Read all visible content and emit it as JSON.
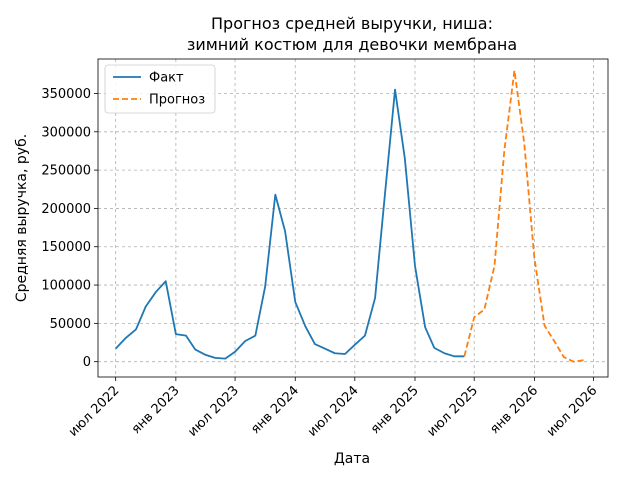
{
  "chart_data": {
    "type": "line",
    "title_line1": "Прогноз средней выручки, ниша:",
    "title_line2": "зимний костюм для девочки мембрана",
    "xlabel": "Дата",
    "ylabel": "Средняя выручка, руб.",
    "ylim": [
      -20000,
      395000
    ],
    "yticks": [
      0,
      50000,
      100000,
      150000,
      200000,
      250000,
      300000,
      350000
    ],
    "xlim": [
      "2022-05-08",
      "2026-08-14"
    ],
    "xticks": [
      {
        "date": "2022-07-01",
        "label": "июл 2022"
      },
      {
        "date": "2023-01-01",
        "label": "янв 2023"
      },
      {
        "date": "2023-07-01",
        "label": "июл 2023"
      },
      {
        "date": "2024-01-01",
        "label": "янв 2024"
      },
      {
        "date": "2024-07-01",
        "label": "июл 2024"
      },
      {
        "date": "2025-01-01",
        "label": "янв 2025"
      },
      {
        "date": "2025-07-01",
        "label": "июл 2025"
      },
      {
        "date": "2026-01-01",
        "label": "янв 2026"
      },
      {
        "date": "2026-07-01",
        "label": "июл 2026"
      }
    ],
    "grid": true,
    "legend_position": "top-left",
    "series": [
      {
        "name": "Факт",
        "color": "#1f77b4",
        "style": "solid",
        "points": [
          [
            "2022-07-01",
            17000
          ],
          [
            "2022-08-01",
            31000
          ],
          [
            "2022-09-01",
            42000
          ],
          [
            "2022-10-01",
            72000
          ],
          [
            "2022-11-01",
            91000
          ],
          [
            "2022-12-01",
            105000
          ],
          [
            "2023-01-01",
            36000
          ],
          [
            "2023-02-01",
            34000
          ],
          [
            "2023-03-01",
            16000
          ],
          [
            "2023-04-01",
            9000
          ],
          [
            "2023-05-01",
            5000
          ],
          [
            "2023-06-01",
            4000
          ],
          [
            "2023-07-01",
            13000
          ],
          [
            "2023-08-01",
            27000
          ],
          [
            "2023-09-01",
            34000
          ],
          [
            "2023-10-01",
            98000
          ],
          [
            "2023-11-01",
            218000
          ],
          [
            "2023-12-01",
            170000
          ],
          [
            "2024-01-01",
            78000
          ],
          [
            "2024-02-01",
            46000
          ],
          [
            "2024-03-01",
            23000
          ],
          [
            "2024-04-01",
            17000
          ],
          [
            "2024-05-01",
            11000
          ],
          [
            "2024-06-01",
            10000
          ],
          [
            "2024-07-01",
            22000
          ],
          [
            "2024-08-01",
            34000
          ],
          [
            "2024-09-01",
            83000
          ],
          [
            "2024-10-01",
            218000
          ],
          [
            "2024-11-01",
            355000
          ],
          [
            "2024-12-01",
            265000
          ],
          [
            "2025-01-01",
            125000
          ],
          [
            "2025-02-01",
            45000
          ],
          [
            "2025-03-01",
            18000
          ],
          [
            "2025-04-01",
            11000
          ],
          [
            "2025-05-01",
            7000
          ],
          [
            "2025-06-01",
            7000
          ]
        ]
      },
      {
        "name": "Прогноз",
        "color": "#ff7f0e",
        "style": "dashed",
        "points": [
          [
            "2025-06-01",
            7000
          ],
          [
            "2025-07-01",
            58000
          ],
          [
            "2025-08-01",
            68000
          ],
          [
            "2025-09-01",
            125000
          ],
          [
            "2025-10-01",
            275000
          ],
          [
            "2025-11-01",
            380000
          ],
          [
            "2025-12-01",
            285000
          ],
          [
            "2026-01-01",
            135000
          ],
          [
            "2026-02-01",
            47000
          ],
          [
            "2026-03-01",
            28000
          ],
          [
            "2026-04-01",
            6000
          ],
          [
            "2026-05-01",
            0
          ],
          [
            "2026-06-01",
            2000
          ]
        ]
      }
    ]
  }
}
